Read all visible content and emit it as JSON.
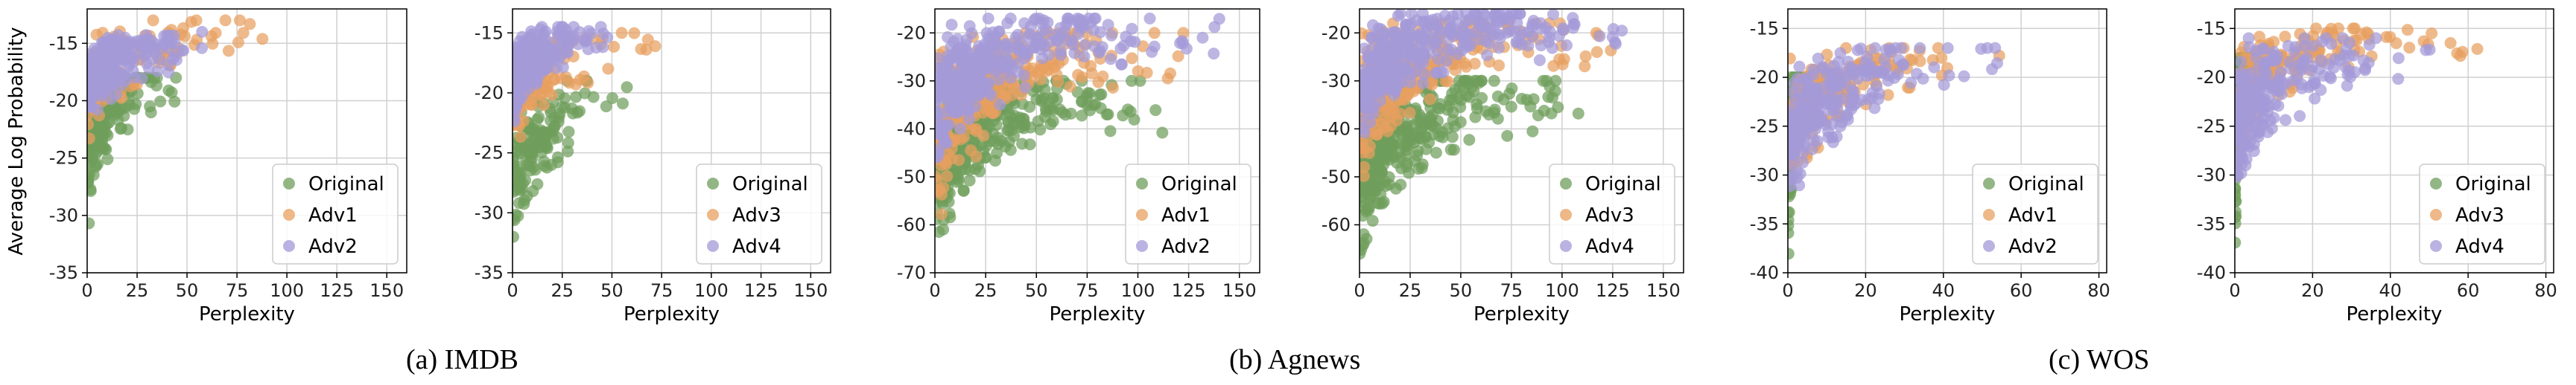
{
  "y_axis_label": "Average Log Probability",
  "colors": {
    "Original": "#6f9e5c",
    "Adv1": "#e8a060",
    "Adv2": "#a39ad8",
    "Adv3": "#e8a060",
    "Adv4": "#a39ad8"
  },
  "captions": {
    "imdb": "(a)  IMDB",
    "agnews": "(b)  Agnews",
    "wos": "(c)  WOS"
  },
  "chart_data": [
    {
      "type": "scatter",
      "dataset": "IMDB",
      "xlabel": "Perplexity",
      "ylabel": "Average Log Probability",
      "xlim": [
        0,
        160
      ],
      "ylim": [
        -35,
        -12
      ],
      "xticks": [
        0,
        25,
        50,
        75,
        100,
        125,
        150
      ],
      "yticks": [
        -35,
        -30,
        -25,
        -20,
        -15
      ],
      "grid": true,
      "legend_loc": "lower-right",
      "legend": [
        "Original",
        "Adv1",
        "Adv2"
      ],
      "series": [
        {
          "name": "Original",
          "n": 160,
          "seed": 11,
          "xs": 12,
          "xmax": 60,
          "ylow": -31,
          "yhigh": -18
        },
        {
          "name": "Adv1",
          "n": 130,
          "seed": 12,
          "xs": 22,
          "xmax": 155,
          "ylow": -24,
          "yhigh": -13
        },
        {
          "name": "Adv2",
          "n": 240,
          "seed": 13,
          "xs": 14,
          "xmax": 158,
          "ylow": -22,
          "yhigh": -14
        }
      ]
    },
    {
      "type": "scatter",
      "dataset": "IMDB",
      "xlabel": "Perplexity",
      "ylabel": "",
      "xlim": [
        0,
        160
      ],
      "ylim": [
        -35,
        -13
      ],
      "xticks": [
        0,
        25,
        50,
        75,
        100,
        125,
        150
      ],
      "yticks": [
        -35,
        -30,
        -25,
        -20,
        -15
      ],
      "grid": true,
      "legend_loc": "lower-right",
      "legend": [
        "Original",
        "Adv3",
        "Adv4"
      ],
      "series": [
        {
          "name": "Original",
          "n": 150,
          "seed": 21,
          "xs": 14,
          "xmax": 155,
          "ylow": -32,
          "yhigh": -19
        },
        {
          "name": "Adv3",
          "n": 130,
          "seed": 22,
          "xs": 20,
          "xmax": 158,
          "ylow": -25,
          "yhigh": -15
        },
        {
          "name": "Adv4",
          "n": 260,
          "seed": 23,
          "xs": 12,
          "xmax": 95,
          "ylow": -23,
          "yhigh": -14.5
        }
      ]
    },
    {
      "type": "scatter",
      "dataset": "Agnews",
      "xlabel": "Perplexity",
      "ylabel": "",
      "xlim": [
        0,
        160
      ],
      "ylim": [
        -70,
        -15
      ],
      "xticks": [
        0,
        25,
        50,
        75,
        100,
        125,
        150
      ],
      "yticks": [
        -70,
        -60,
        -50,
        -40,
        -30,
        -20
      ],
      "grid": true,
      "legend_loc": "lower-right",
      "legend": [
        "Original",
        "Adv1",
        "Adv2"
      ],
      "series": [
        {
          "name": "Original",
          "n": 320,
          "seed": 31,
          "xs": 28,
          "xmax": 158,
          "ylow": -65,
          "yhigh": -30
        },
        {
          "name": "Adv1",
          "n": 300,
          "seed": 32,
          "xs": 30,
          "xmax": 158,
          "ylow": -60,
          "yhigh": -20
        },
        {
          "name": "Adv2",
          "n": 340,
          "seed": 33,
          "xs": 34,
          "xmax": 158,
          "ylow": -52,
          "yhigh": -17
        }
      ]
    },
    {
      "type": "scatter",
      "dataset": "Agnews",
      "xlabel": "Perplexity",
      "ylabel": "",
      "xlim": [
        0,
        160
      ],
      "ylim": [
        -70,
        -15
      ],
      "xticks": [
        0,
        25,
        50,
        75,
        100,
        125,
        150
      ],
      "yticks": [
        -60,
        -50,
        -40,
        -30,
        -20
      ],
      "grid": true,
      "legend_loc": "lower-right",
      "legend": [
        "Original",
        "Adv3",
        "Adv4"
      ],
      "series": [
        {
          "name": "Original",
          "n": 360,
          "seed": 41,
          "xs": 26,
          "xmax": 158,
          "ylow": -68,
          "yhigh": -30
        },
        {
          "name": "Adv3",
          "n": 300,
          "seed": 42,
          "xs": 30,
          "xmax": 158,
          "ylow": -55,
          "yhigh": -18
        },
        {
          "name": "Adv4",
          "n": 340,
          "seed": 43,
          "xs": 36,
          "xmax": 158,
          "ylow": -45,
          "yhigh": -16
        }
      ]
    },
    {
      "type": "scatter",
      "dataset": "WOS",
      "xlabel": "Perplexity",
      "ylabel": "",
      "xlim": [
        0,
        82
      ],
      "ylim": [
        -40,
        -13
      ],
      "xticks": [
        0,
        20,
        40,
        60,
        80
      ],
      "yticks": [
        -40,
        -35,
        -30,
        -25,
        -20,
        -15
      ],
      "grid": true,
      "legend_loc": "lower-right",
      "legend": [
        "Original",
        "Adv1",
        "Adv2"
      ],
      "series": [
        {
          "name": "Original",
          "n": 160,
          "seed": 51,
          "xs": 1.5,
          "xmax": 6,
          "ylow": -40,
          "yhigh": -20
        },
        {
          "name": "Adv1",
          "n": 170,
          "seed": 52,
          "xs": 14,
          "xmax": 80,
          "ylow": -32,
          "yhigh": -17
        },
        {
          "name": "Adv2",
          "n": 230,
          "seed": 53,
          "xs": 13,
          "xmax": 80,
          "ylow": -34,
          "yhigh": -17
        }
      ]
    },
    {
      "type": "scatter",
      "dataset": "WOS",
      "xlabel": "Perplexity",
      "ylabel": "",
      "xlim": [
        0,
        82
      ],
      "ylim": [
        -40,
        -13
      ],
      "xticks": [
        0,
        20,
        40,
        60,
        80
      ],
      "yticks": [
        -40,
        -35,
        -30,
        -25,
        -20,
        -15
      ],
      "grid": true,
      "legend_loc": "lower-right",
      "legend": [
        "Original",
        "Adv3",
        "Adv4"
      ],
      "series": [
        {
          "name": "Original",
          "n": 160,
          "seed": 61,
          "xs": 1.5,
          "xmax": 5,
          "ylow": -40,
          "yhigh": -18
        },
        {
          "name": "Adv3",
          "n": 170,
          "seed": 62,
          "xs": 16,
          "xmax": 80,
          "ylow": -28,
          "yhigh": -15
        },
        {
          "name": "Adv4",
          "n": 230,
          "seed": 63,
          "xs": 12,
          "xmax": 80,
          "ylow": -32,
          "yhigh": -16
        }
      ]
    }
  ]
}
